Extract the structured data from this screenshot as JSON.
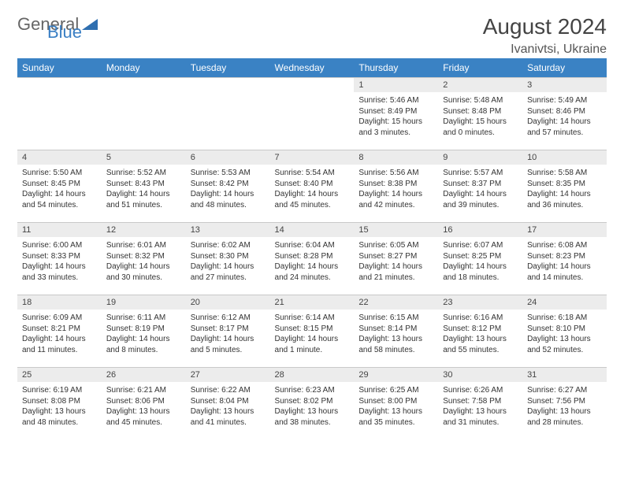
{
  "brand": {
    "part1": "General",
    "part2": "Blue"
  },
  "title": {
    "month": "August 2024",
    "location": "Ivanivtsi, Ukraine"
  },
  "weekdays": [
    "Sunday",
    "Monday",
    "Tuesday",
    "Wednesday",
    "Thursday",
    "Friday",
    "Saturday"
  ],
  "colors": {
    "header_bg": "#3a82c4",
    "daynum_bg": "#ececec",
    "border": "#c9c9c9"
  },
  "weeks": [
    [
      null,
      null,
      null,
      null,
      {
        "d": "1",
        "sr": "5:46 AM",
        "ss": "8:49 PM",
        "dl": "15 hours and 3 minutes."
      },
      {
        "d": "2",
        "sr": "5:48 AM",
        "ss": "8:48 PM",
        "dl": "15 hours and 0 minutes."
      },
      {
        "d": "3",
        "sr": "5:49 AM",
        "ss": "8:46 PM",
        "dl": "14 hours and 57 minutes."
      }
    ],
    [
      {
        "d": "4",
        "sr": "5:50 AM",
        "ss": "8:45 PM",
        "dl": "14 hours and 54 minutes."
      },
      {
        "d": "5",
        "sr": "5:52 AM",
        "ss": "8:43 PM",
        "dl": "14 hours and 51 minutes."
      },
      {
        "d": "6",
        "sr": "5:53 AM",
        "ss": "8:42 PM",
        "dl": "14 hours and 48 minutes."
      },
      {
        "d": "7",
        "sr": "5:54 AM",
        "ss": "8:40 PM",
        "dl": "14 hours and 45 minutes."
      },
      {
        "d": "8",
        "sr": "5:56 AM",
        "ss": "8:38 PM",
        "dl": "14 hours and 42 minutes."
      },
      {
        "d": "9",
        "sr": "5:57 AM",
        "ss": "8:37 PM",
        "dl": "14 hours and 39 minutes."
      },
      {
        "d": "10",
        "sr": "5:58 AM",
        "ss": "8:35 PM",
        "dl": "14 hours and 36 minutes."
      }
    ],
    [
      {
        "d": "11",
        "sr": "6:00 AM",
        "ss": "8:33 PM",
        "dl": "14 hours and 33 minutes."
      },
      {
        "d": "12",
        "sr": "6:01 AM",
        "ss": "8:32 PM",
        "dl": "14 hours and 30 minutes."
      },
      {
        "d": "13",
        "sr": "6:02 AM",
        "ss": "8:30 PM",
        "dl": "14 hours and 27 minutes."
      },
      {
        "d": "14",
        "sr": "6:04 AM",
        "ss": "8:28 PM",
        "dl": "14 hours and 24 minutes."
      },
      {
        "d": "15",
        "sr": "6:05 AM",
        "ss": "8:27 PM",
        "dl": "14 hours and 21 minutes."
      },
      {
        "d": "16",
        "sr": "6:07 AM",
        "ss": "8:25 PM",
        "dl": "14 hours and 18 minutes."
      },
      {
        "d": "17",
        "sr": "6:08 AM",
        "ss": "8:23 PM",
        "dl": "14 hours and 14 minutes."
      }
    ],
    [
      {
        "d": "18",
        "sr": "6:09 AM",
        "ss": "8:21 PM",
        "dl": "14 hours and 11 minutes."
      },
      {
        "d": "19",
        "sr": "6:11 AM",
        "ss": "8:19 PM",
        "dl": "14 hours and 8 minutes."
      },
      {
        "d": "20",
        "sr": "6:12 AM",
        "ss": "8:17 PM",
        "dl": "14 hours and 5 minutes."
      },
      {
        "d": "21",
        "sr": "6:14 AM",
        "ss": "8:15 PM",
        "dl": "14 hours and 1 minute."
      },
      {
        "d": "22",
        "sr": "6:15 AM",
        "ss": "8:14 PM",
        "dl": "13 hours and 58 minutes."
      },
      {
        "d": "23",
        "sr": "6:16 AM",
        "ss": "8:12 PM",
        "dl": "13 hours and 55 minutes."
      },
      {
        "d": "24",
        "sr": "6:18 AM",
        "ss": "8:10 PM",
        "dl": "13 hours and 52 minutes."
      }
    ],
    [
      {
        "d": "25",
        "sr": "6:19 AM",
        "ss": "8:08 PM",
        "dl": "13 hours and 48 minutes."
      },
      {
        "d": "26",
        "sr": "6:21 AM",
        "ss": "8:06 PM",
        "dl": "13 hours and 45 minutes."
      },
      {
        "d": "27",
        "sr": "6:22 AM",
        "ss": "8:04 PM",
        "dl": "13 hours and 41 minutes."
      },
      {
        "d": "28",
        "sr": "6:23 AM",
        "ss": "8:02 PM",
        "dl": "13 hours and 38 minutes."
      },
      {
        "d": "29",
        "sr": "6:25 AM",
        "ss": "8:00 PM",
        "dl": "13 hours and 35 minutes."
      },
      {
        "d": "30",
        "sr": "6:26 AM",
        "ss": "7:58 PM",
        "dl": "13 hours and 31 minutes."
      },
      {
        "d": "31",
        "sr": "6:27 AM",
        "ss": "7:56 PM",
        "dl": "13 hours and 28 minutes."
      }
    ]
  ],
  "labels": {
    "sunrise": "Sunrise: ",
    "sunset": "Sunset: ",
    "daylight": "Daylight: "
  }
}
